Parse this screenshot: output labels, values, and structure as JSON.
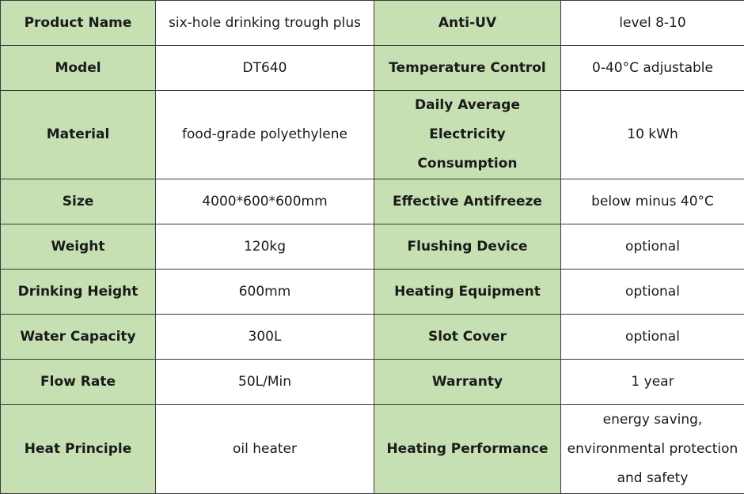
{
  "table": {
    "rows": [
      {
        "label1": "Product Name",
        "value1": "six-hole drinking trough plus",
        "label2": "Anti-UV",
        "value2": "level 8-10"
      },
      {
        "label1": "Model",
        "value1": "DT640",
        "label2": "Temperature Control",
        "value2": "0-40°C adjustable"
      },
      {
        "label1": "Material",
        "value1": "food-grade polyethylene",
        "label2": "Daily Average Electricity Consumption",
        "value2": "10 kWh"
      },
      {
        "label1": "Size",
        "value1": "4000*600*600mm",
        "label2": "Effective Antifreeze",
        "value2": "below minus 40°C"
      },
      {
        "label1": "Weight",
        "value1": "120kg",
        "label2": "Flushing Device",
        "value2": "optional"
      },
      {
        "label1": "Drinking Height",
        "value1": "600mm",
        "label2": "Heating Equipment",
        "value2": "optional"
      },
      {
        "label1": "Water Capacity",
        "value1": "300L",
        "label2": "Slot Cover",
        "value2": "optional"
      },
      {
        "label1": "Flow Rate",
        "value1": "50L/Min",
        "label2": "Warranty",
        "value2": "1 year"
      },
      {
        "label1": "Heat Principle",
        "value1": "oil heater",
        "label2": "Heating Performance",
        "value2": "energy saving, environmental protection and safety"
      }
    ]
  }
}
